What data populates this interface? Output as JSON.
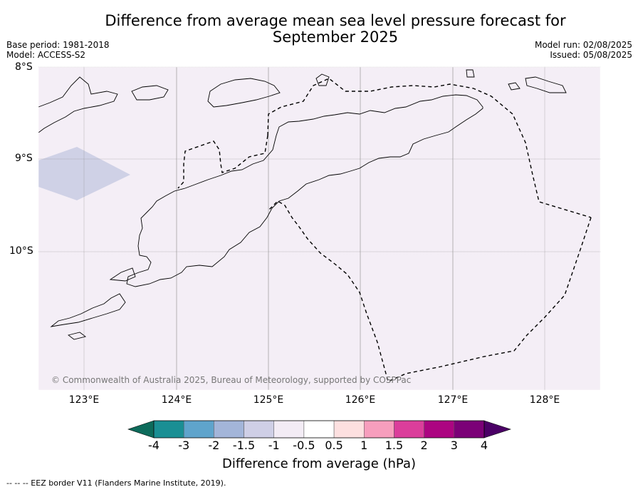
{
  "title_line1": "Difference from average mean sea level pressure forecast for",
  "title_line2": "September 2025",
  "meta_left": {
    "base_period": "Base period: 1981-2018",
    "model": "Model: ACCESS-S2"
  },
  "meta_right": {
    "model_run": "Model run: 02/08/2025",
    "issued": "Issued: 05/08/2025"
  },
  "lat_labels": [
    "8°S",
    "9°S",
    "10°S"
  ],
  "lon_labels": [
    "123°E",
    "124°E",
    "125°E",
    "126°E",
    "127°E",
    "128°E"
  ],
  "credit": "© Commonwealth of Australia 2025, Bureau of Meteorology, supported by COSPPac",
  "colorbar": {
    "title": "Difference from average (hPa)",
    "tick_labels": [
      "-4",
      "-3",
      "-2",
      "-1.5",
      "-1",
      "-0.5",
      "0.5",
      "1",
      "1.5",
      "2",
      "3",
      "4"
    ],
    "colors": [
      "#1a8f94",
      "#5fa4cc",
      "#a3b5d9",
      "#cfcfe6",
      "#f3ecf5",
      "#ffffff",
      "#fde0e0",
      "#f79ebd",
      "#db3e9b",
      "#ac0581",
      "#7b0177"
    ],
    "under_color": "#0d6b5b",
    "over_color": "#4b0066"
  },
  "map": {
    "background_color": "#f4eef6",
    "anomaly_patch_color": "#cfd1e6"
  },
  "footnote": "--  --  -- EEZ border V11 (Flanders Marine Institute, 2019)."
}
